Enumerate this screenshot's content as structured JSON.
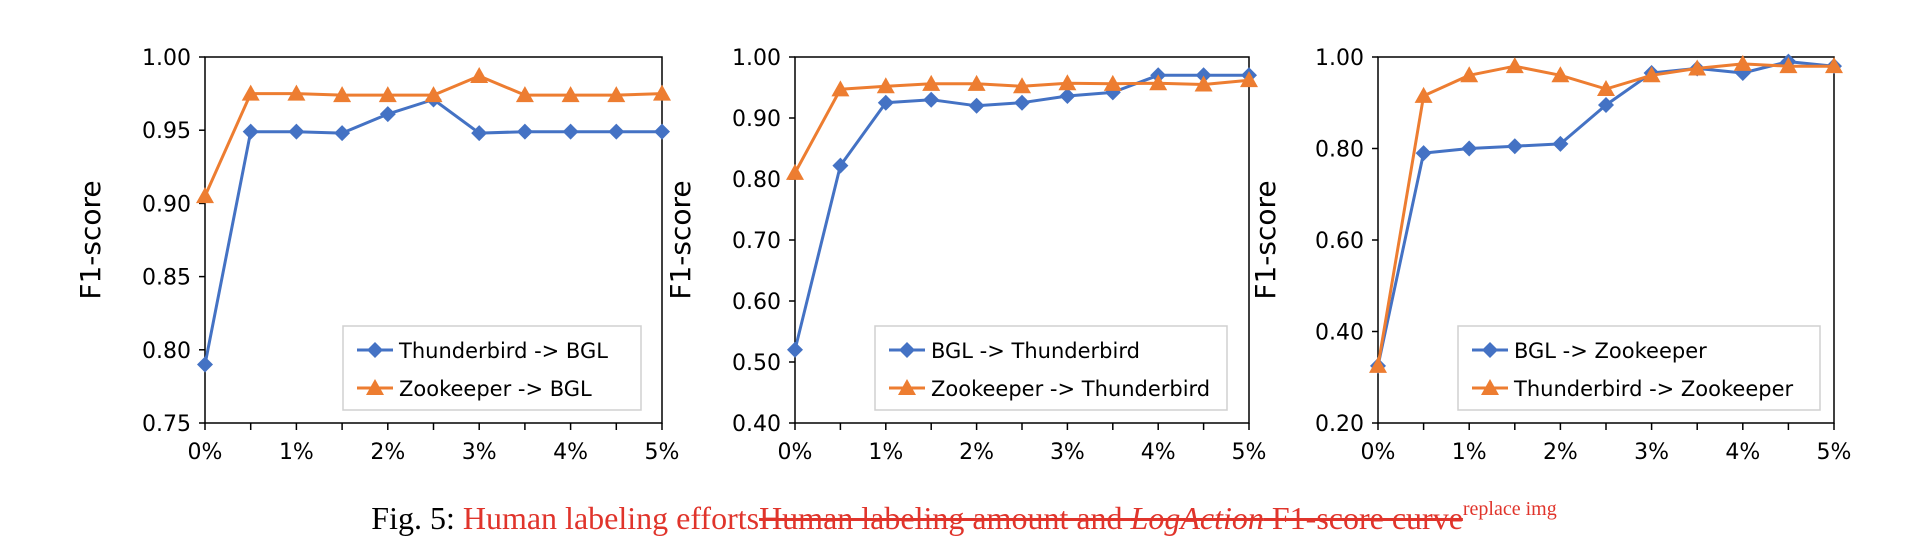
{
  "colors": {
    "blue": "#4472c4",
    "orange": "#ed7d31",
    "axis": "#000000",
    "caption_red": "#e0342b"
  },
  "chart_data": [
    {
      "type": "line",
      "xlabel": "",
      "ylabel": "F1-score",
      "x": [
        0,
        0.5,
        1,
        1.5,
        2,
        2.5,
        3,
        3.5,
        4,
        4.5,
        5
      ],
      "xticks": [
        {
          "v": 0,
          "label": "0%"
        },
        {
          "v": 1,
          "label": "1%"
        },
        {
          "v": 2,
          "label": "2%"
        },
        {
          "v": 3,
          "label": "3%"
        },
        {
          "v": 4,
          "label": "4%"
        },
        {
          "v": 5,
          "label": "5%"
        }
      ],
      "ylim": [
        0.75,
        1.0
      ],
      "yticks": [
        {
          "v": 0.75,
          "label": "0.75"
        },
        {
          "v": 0.8,
          "label": "0.80"
        },
        {
          "v": 0.85,
          "label": "0.85"
        },
        {
          "v": 0.9,
          "label": "0.90"
        },
        {
          "v": 0.95,
          "label": "0.95"
        },
        {
          "v": 1.0,
          "label": "1.00"
        }
      ],
      "legend_position": "bottom-right",
      "series": [
        {
          "name": "Thunderbird -> BGL",
          "color": "#4472c4",
          "marker": "diamond",
          "values": [
            0.79,
            0.949,
            0.949,
            0.948,
            0.961,
            0.971,
            0.948,
            0.949,
            0.949,
            0.949,
            0.949
          ]
        },
        {
          "name": "Zookeeper -> BGL",
          "color": "#ed7d31",
          "marker": "triangle",
          "values": [
            0.905,
            0.975,
            0.975,
            0.974,
            0.974,
            0.974,
            0.987,
            0.974,
            0.974,
            0.974,
            0.975
          ]
        }
      ]
    },
    {
      "type": "line",
      "xlabel": "",
      "ylabel": "F1-score",
      "x": [
        0,
        0.5,
        1,
        1.5,
        2,
        2.5,
        3,
        3.5,
        4,
        4.5,
        5
      ],
      "xticks": [
        {
          "v": 0,
          "label": "0%"
        },
        {
          "v": 1,
          "label": "1%"
        },
        {
          "v": 2,
          "label": "2%"
        },
        {
          "v": 3,
          "label": "3%"
        },
        {
          "v": 4,
          "label": "4%"
        },
        {
          "v": 5,
          "label": "5%"
        }
      ],
      "ylim": [
        0.4,
        1.0
      ],
      "yticks": [
        {
          "v": 0.4,
          "label": "0.40"
        },
        {
          "v": 0.5,
          "label": "0.50"
        },
        {
          "v": 0.6,
          "label": "0.60"
        },
        {
          "v": 0.7,
          "label": "0.70"
        },
        {
          "v": 0.8,
          "label": "0.80"
        },
        {
          "v": 0.9,
          "label": "0.90"
        },
        {
          "v": 1.0,
          "label": "1.00"
        }
      ],
      "legend_position": "bottom-right",
      "series": [
        {
          "name": "BGL -> Thunderbird",
          "color": "#4472c4",
          "marker": "diamond",
          "values": [
            0.52,
            0.822,
            0.925,
            0.93,
            0.92,
            0.925,
            0.936,
            0.942,
            0.97,
            0.97,
            0.97
          ]
        },
        {
          "name": "Zookeeper -> Thunderbird",
          "color": "#ed7d31",
          "marker": "triangle",
          "values": [
            0.81,
            0.947,
            0.952,
            0.956,
            0.956,
            0.952,
            0.957,
            0.956,
            0.957,
            0.955,
            0.962
          ]
        }
      ]
    },
    {
      "type": "line",
      "xlabel": "",
      "ylabel": "F1-score",
      "x": [
        0,
        0.5,
        1,
        1.5,
        2,
        2.5,
        3,
        3.5,
        4,
        4.5,
        5
      ],
      "xticks": [
        {
          "v": 0,
          "label": "0%"
        },
        {
          "v": 1,
          "label": "1%"
        },
        {
          "v": 2,
          "label": "2%"
        },
        {
          "v": 3,
          "label": "3%"
        },
        {
          "v": 4,
          "label": "4%"
        },
        {
          "v": 5,
          "label": "5%"
        }
      ],
      "ylim": [
        0.2,
        1.0
      ],
      "yticks": [
        {
          "v": 0.2,
          "label": "0.20"
        },
        {
          "v": 0.4,
          "label": "0.40"
        },
        {
          "v": 0.6,
          "label": "0.60"
        },
        {
          "v": 0.8,
          "label": "0.80"
        },
        {
          "v": 1.0,
          "label": "1.00"
        }
      ],
      "legend_position": "bottom-right",
      "series": [
        {
          "name": "BGL -> Zookeeper",
          "color": "#4472c4",
          "marker": "diamond",
          "values": [
            0.325,
            0.79,
            0.8,
            0.805,
            0.81,
            0.895,
            0.965,
            0.975,
            0.965,
            0.99,
            0.98
          ]
        },
        {
          "name": "Thunderbird -> Zookeeper",
          "color": "#ed7d31",
          "marker": "triangle",
          "values": [
            0.325,
            0.915,
            0.96,
            0.98,
            0.96,
            0.93,
            0.96,
            0.975,
            0.985,
            0.98,
            0.98
          ]
        }
      ]
    }
  ],
  "caption": {
    "prefix": "Fig. 5: ",
    "inserted": "Human labeling efforts",
    "deleted_1": "Human labeling amount and ",
    "deleted_italic": "LogAction",
    "deleted_2": " F1-score curve",
    "superscript": "replace img"
  }
}
